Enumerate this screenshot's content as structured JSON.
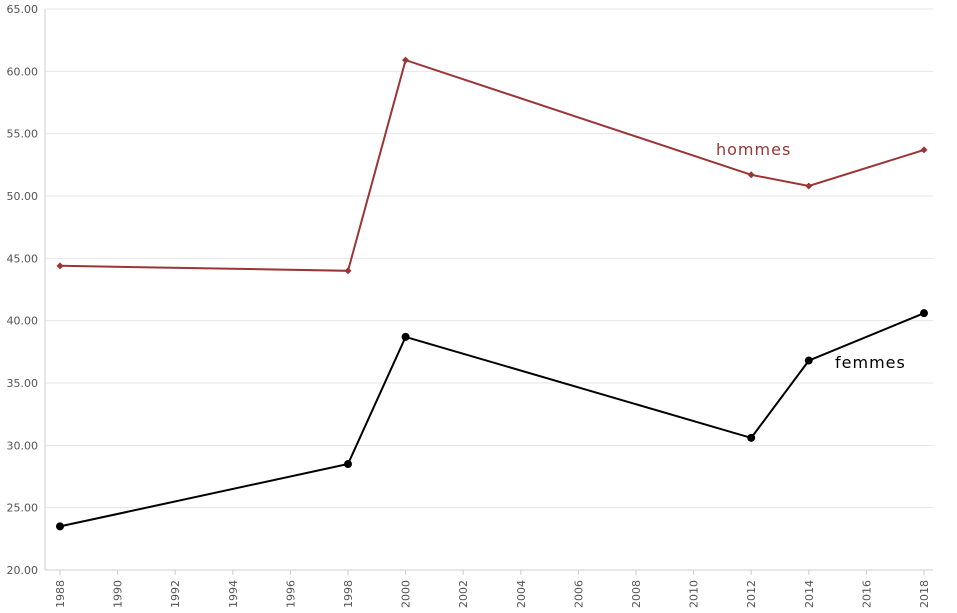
{
  "chart_data": {
    "type": "line",
    "title": "",
    "xlabel": "",
    "ylabel": "",
    "xlim": [
      1988,
      2018
    ],
    "ylim": [
      20,
      65
    ],
    "grid": true,
    "legend": "inline labels",
    "x_ticks": [
      "1988",
      "1990",
      "1992",
      "1994",
      "1996",
      "1998",
      "2000",
      "2002",
      "2004",
      "2006",
      "2008",
      "2010",
      "2012",
      "2014",
      "2016",
      "2018"
    ],
    "y_ticks": [
      "20.00",
      "25.00",
      "30.00",
      "35.00",
      "40.00",
      "45.00",
      "50.00",
      "55.00",
      "60.00",
      "65.00"
    ],
    "series": [
      {
        "name": "hommes",
        "color": "#9b3535",
        "marker": "diamond",
        "x": [
          1988,
          1998,
          2000,
          2012,
          2014,
          2018
        ],
        "values": [
          44.4,
          44.0,
          60.9,
          51.7,
          50.8,
          53.7
        ]
      },
      {
        "name": "femmes",
        "color": "#000000",
        "marker": "circle",
        "x": [
          1988,
          1998,
          2000,
          2012,
          2014,
          2018
        ],
        "values": [
          23.5,
          28.5,
          38.7,
          30.6,
          36.8,
          40.6
        ]
      }
    ]
  }
}
